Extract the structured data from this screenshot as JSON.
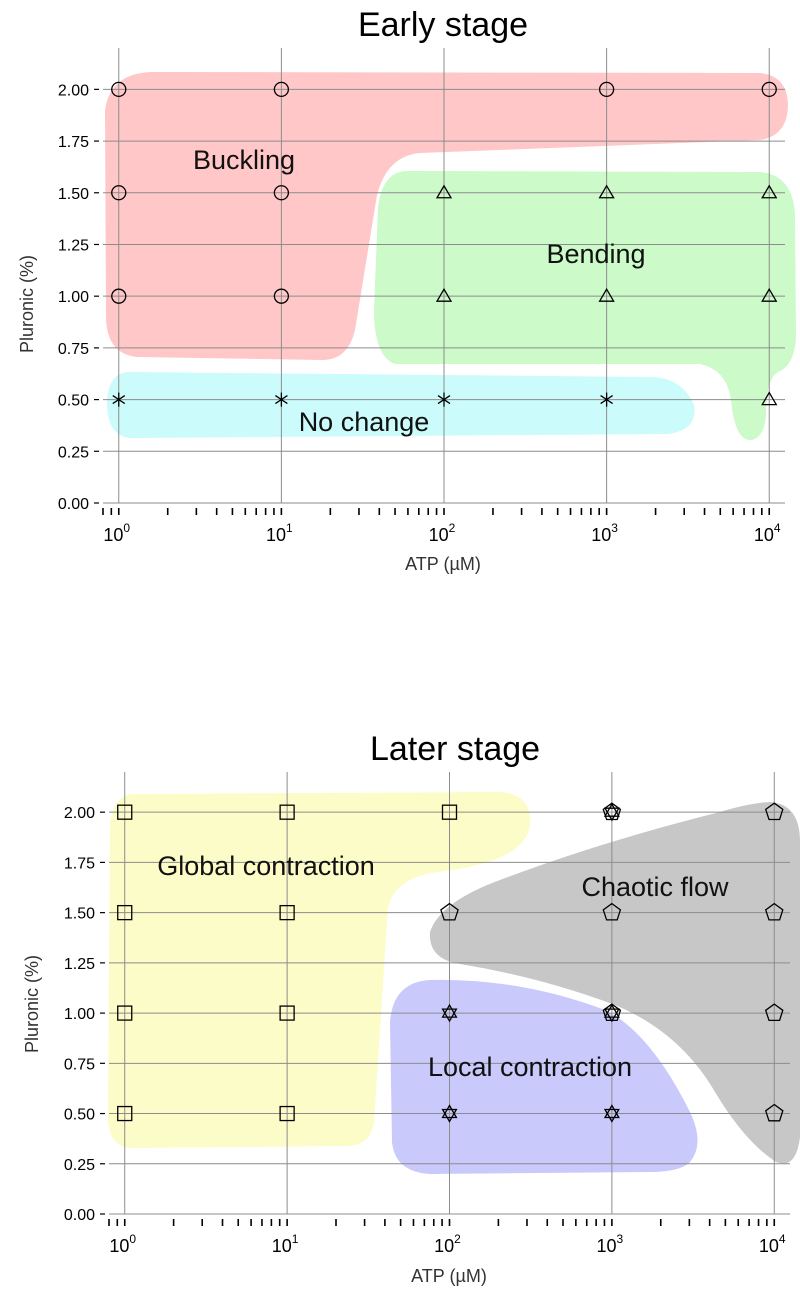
{
  "chart_data": [
    {
      "type": "scatter",
      "title": "Early stage",
      "xlabel": "ATP (µM)",
      "ylabel": "Pluronic (%)",
      "x_scale": "log",
      "xlim": [
        0.8,
        12500
      ],
      "ylim": [
        0,
        2.2
      ],
      "x_ticks": [
        1,
        10,
        100,
        1000,
        10000
      ],
      "x_tick_labels": [
        "10^0",
        "10^1",
        "10^2",
        "10^3",
        "10^4"
      ],
      "y_ticks": [
        0,
        0.25,
        0.5,
        0.75,
        1.0,
        1.25,
        1.5,
        1.75,
        2.0
      ],
      "y_tick_labels": [
        "0.00",
        "0.25",
        "0.50",
        "0.75",
        "1.00",
        "1.25",
        "1.50",
        "1.75",
        "2.00"
      ],
      "grid": true,
      "regions": [
        {
          "label": "Buckling",
          "color": "#ffc7c7"
        },
        {
          "label": "Bending",
          "color": "#ccfac9"
        },
        {
          "label": "No change",
          "color": "#cbfbfb"
        }
      ],
      "series": [
        {
          "marker": "circle",
          "points": [
            [
              1,
              2.0
            ],
            [
              10,
              2.0
            ],
            [
              1000,
              2.0
            ],
            [
              10000,
              2.0
            ],
            [
              1,
              1.5
            ],
            [
              10,
              1.5
            ],
            [
              1,
              1.0
            ],
            [
              10,
              1.0
            ]
          ]
        },
        {
          "marker": "triangle",
          "points": [
            [
              100,
              1.5
            ],
            [
              1000,
              1.5
            ],
            [
              10000,
              1.5
            ],
            [
              100,
              1.0
            ],
            [
              1000,
              1.0
            ],
            [
              10000,
              1.0
            ],
            [
              10000,
              0.5
            ]
          ]
        },
        {
          "marker": "asterisk",
          "points": [
            [
              1,
              0.5
            ],
            [
              10,
              0.5
            ],
            [
              100,
              0.5
            ],
            [
              1000,
              0.5
            ]
          ]
        }
      ]
    },
    {
      "type": "scatter",
      "title": "Later stage",
      "xlabel": "ATP (µM)",
      "ylabel": "Pluronic (%)",
      "x_scale": "log",
      "xlim": [
        0.8,
        12500
      ],
      "ylim": [
        0,
        2.2
      ],
      "x_ticks": [
        1,
        10,
        100,
        1000,
        10000
      ],
      "x_tick_labels": [
        "10^0",
        "10^1",
        "10^2",
        "10^3",
        "10^4"
      ],
      "y_ticks": [
        0,
        0.25,
        0.5,
        0.75,
        1.0,
        1.25,
        1.5,
        1.75,
        2.0
      ],
      "y_tick_labels": [
        "0.00",
        "0.25",
        "0.50",
        "0.75",
        "1.00",
        "1.25",
        "1.50",
        "1.75",
        "2.00"
      ],
      "grid": true,
      "regions": [
        {
          "label": "Global contraction",
          "color": "#fcfcc8"
        },
        {
          "label": "Chaotic flow",
          "color": "#c7c7c7"
        },
        {
          "label": "Local contraction",
          "color": "#c9c9fb"
        }
      ],
      "series": [
        {
          "marker": "square",
          "points": [
            [
              1,
              2.0
            ],
            [
              10,
              2.0
            ],
            [
              100,
              2.0
            ],
            [
              1,
              1.5
            ],
            [
              10,
              1.5
            ],
            [
              1,
              1.0
            ],
            [
              10,
              1.0
            ],
            [
              1,
              0.5
            ],
            [
              10,
              0.5
            ]
          ]
        },
        {
          "marker": "pentagon",
          "points": [
            [
              1000,
              2.0
            ],
            [
              10000,
              2.0
            ],
            [
              100,
              1.5
            ],
            [
              1000,
              1.5
            ],
            [
              10000,
              1.5
            ],
            [
              1000,
              1.0
            ],
            [
              10000,
              1.0
            ],
            [
              10000,
              0.5
            ]
          ]
        },
        {
          "marker": "star",
          "points": [
            [
              1000,
              2.0
            ],
            [
              100,
              1.0
            ],
            [
              1000,
              1.0
            ],
            [
              100,
              0.5
            ],
            [
              1000,
              0.5
            ]
          ]
        }
      ]
    }
  ]
}
